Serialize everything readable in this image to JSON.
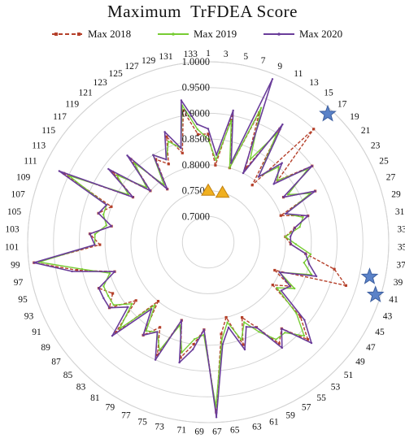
{
  "chart_data": {
    "type": "radar",
    "title": "Maximum  TrFDEA Score",
    "rlim": [
      0.65,
      1.0
    ],
    "r_ticks": [
      "0.7000",
      "0.7500",
      "0.8000",
      "0.8500",
      "0.9000",
      "0.9500",
      "1.0000"
    ],
    "grid": true,
    "legend_position": "top",
    "categories": [
      "1",
      "3",
      "5",
      "7",
      "9",
      "11",
      "13",
      "15",
      "17",
      "19",
      "21",
      "23",
      "25",
      "27",
      "29",
      "31",
      "33",
      "35",
      "37",
      "39",
      "41",
      "43",
      "45",
      "47",
      "49",
      "51",
      "53",
      "55",
      "57",
      "59",
      "61",
      "63",
      "65",
      "67",
      "69",
      "71",
      "73",
      "75",
      "77",
      "79",
      "81",
      "83",
      "85",
      "87",
      "89",
      "91",
      "93",
      "95",
      "97",
      "99",
      "101",
      "103",
      "105",
      "107",
      "109",
      "111",
      "113",
      "115",
      "117",
      "119",
      "121",
      "123",
      "125",
      "127",
      "129",
      "131",
      "133"
    ],
    "series": [
      {
        "name": "Max 2018",
        "color": "#b5402a",
        "style": "dashed",
        "values": [
          0.86,
          0.8,
          0.9,
          0.8,
          0.92,
          0.81,
          0.91,
          0.79,
          0.95,
          0.83,
          0.9,
          0.82,
          0.88,
          0.8,
          0.85,
          0.82,
          0.8,
          0.81,
          0.84,
          0.9,
          0.93,
          0.79,
          0.83,
          0.8,
          0.88,
          0.92,
          0.87,
          0.89,
          0.84,
          0.81,
          0.86,
          0.8,
          0.83,
          0.98,
          0.82,
          0.85,
          0.88,
          0.81,
          0.89,
          0.84,
          0.87,
          0.8,
          0.9,
          0.83,
          0.88,
          0.86,
          0.88,
          0.84,
          0.91,
          0.99,
          0.86,
          0.88,
          0.84,
          0.87,
          0.85,
          0.96,
          0.82,
          0.88,
          0.8,
          0.87,
          0.78,
          0.84,
          0.82,
          0.87,
          0.83,
          0.91,
          0.86
        ]
      },
      {
        "name": "Max 2019",
        "color": "#77cc33",
        "style": "solid",
        "values": [
          0.85,
          0.81,
          0.89,
          0.8,
          0.93,
          0.83,
          0.9,
          0.81,
          0.85,
          0.83,
          0.89,
          0.83,
          0.87,
          0.81,
          0.84,
          0.83,
          0.8,
          0.82,
          0.85,
          0.84,
          0.86,
          0.8,
          0.84,
          0.81,
          0.87,
          0.91,
          0.88,
          0.88,
          0.85,
          0.82,
          0.85,
          0.81,
          0.84,
          0.97,
          0.83,
          0.84,
          0.87,
          0.82,
          0.88,
          0.85,
          0.86,
          0.81,
          0.89,
          0.84,
          0.87,
          0.87,
          0.87,
          0.85,
          0.9,
          0.98,
          0.87,
          0.87,
          0.85,
          0.86,
          0.86,
          0.95,
          0.83,
          0.87,
          0.81,
          0.86,
          0.79,
          0.85,
          0.83,
          0.86,
          0.84,
          0.92,
          0.87
        ]
      },
      {
        "name": "Max 2020",
        "color": "#6a3d9a",
        "style": "solid",
        "values": [
          0.87,
          0.82,
          0.91,
          0.81,
          0.99,
          0.8,
          0.92,
          0.81,
          0.86,
          0.82,
          0.9,
          0.82,
          0.88,
          0.81,
          0.85,
          0.82,
          0.81,
          0.81,
          0.84,
          0.85,
          0.87,
          0.8,
          0.83,
          0.82,
          0.89,
          0.93,
          0.87,
          0.9,
          0.84,
          0.83,
          0.87,
          0.82,
          0.85,
          0.99,
          0.82,
          0.86,
          0.89,
          0.81,
          0.9,
          0.85,
          0.87,
          0.82,
          0.91,
          0.85,
          0.88,
          0.88,
          0.88,
          0.84,
          0.92,
          0.99,
          0.87,
          0.88,
          0.84,
          0.87,
          0.86,
          0.97,
          0.82,
          0.89,
          0.8,
          0.88,
          0.78,
          0.85,
          0.83,
          0.88,
          0.84,
          0.93,
          0.88
        ]
      }
    ],
    "annotations": [
      {
        "shape": "triangle",
        "color": "#f0b020",
        "index": 0,
        "value": 0.75
      },
      {
        "shape": "triangle",
        "color": "#f0b020",
        "index": 3,
        "value": 0.75
      },
      {
        "shape": "star",
        "color": "#5a82c8",
        "index": 8,
        "value": 0.99
      },
      {
        "shape": "star",
        "color": "#5a82c8",
        "index": 19,
        "value": 0.97
      },
      {
        "shape": "star",
        "color": "#5a82c8",
        "index": 20,
        "value": 0.99
      }
    ]
  }
}
